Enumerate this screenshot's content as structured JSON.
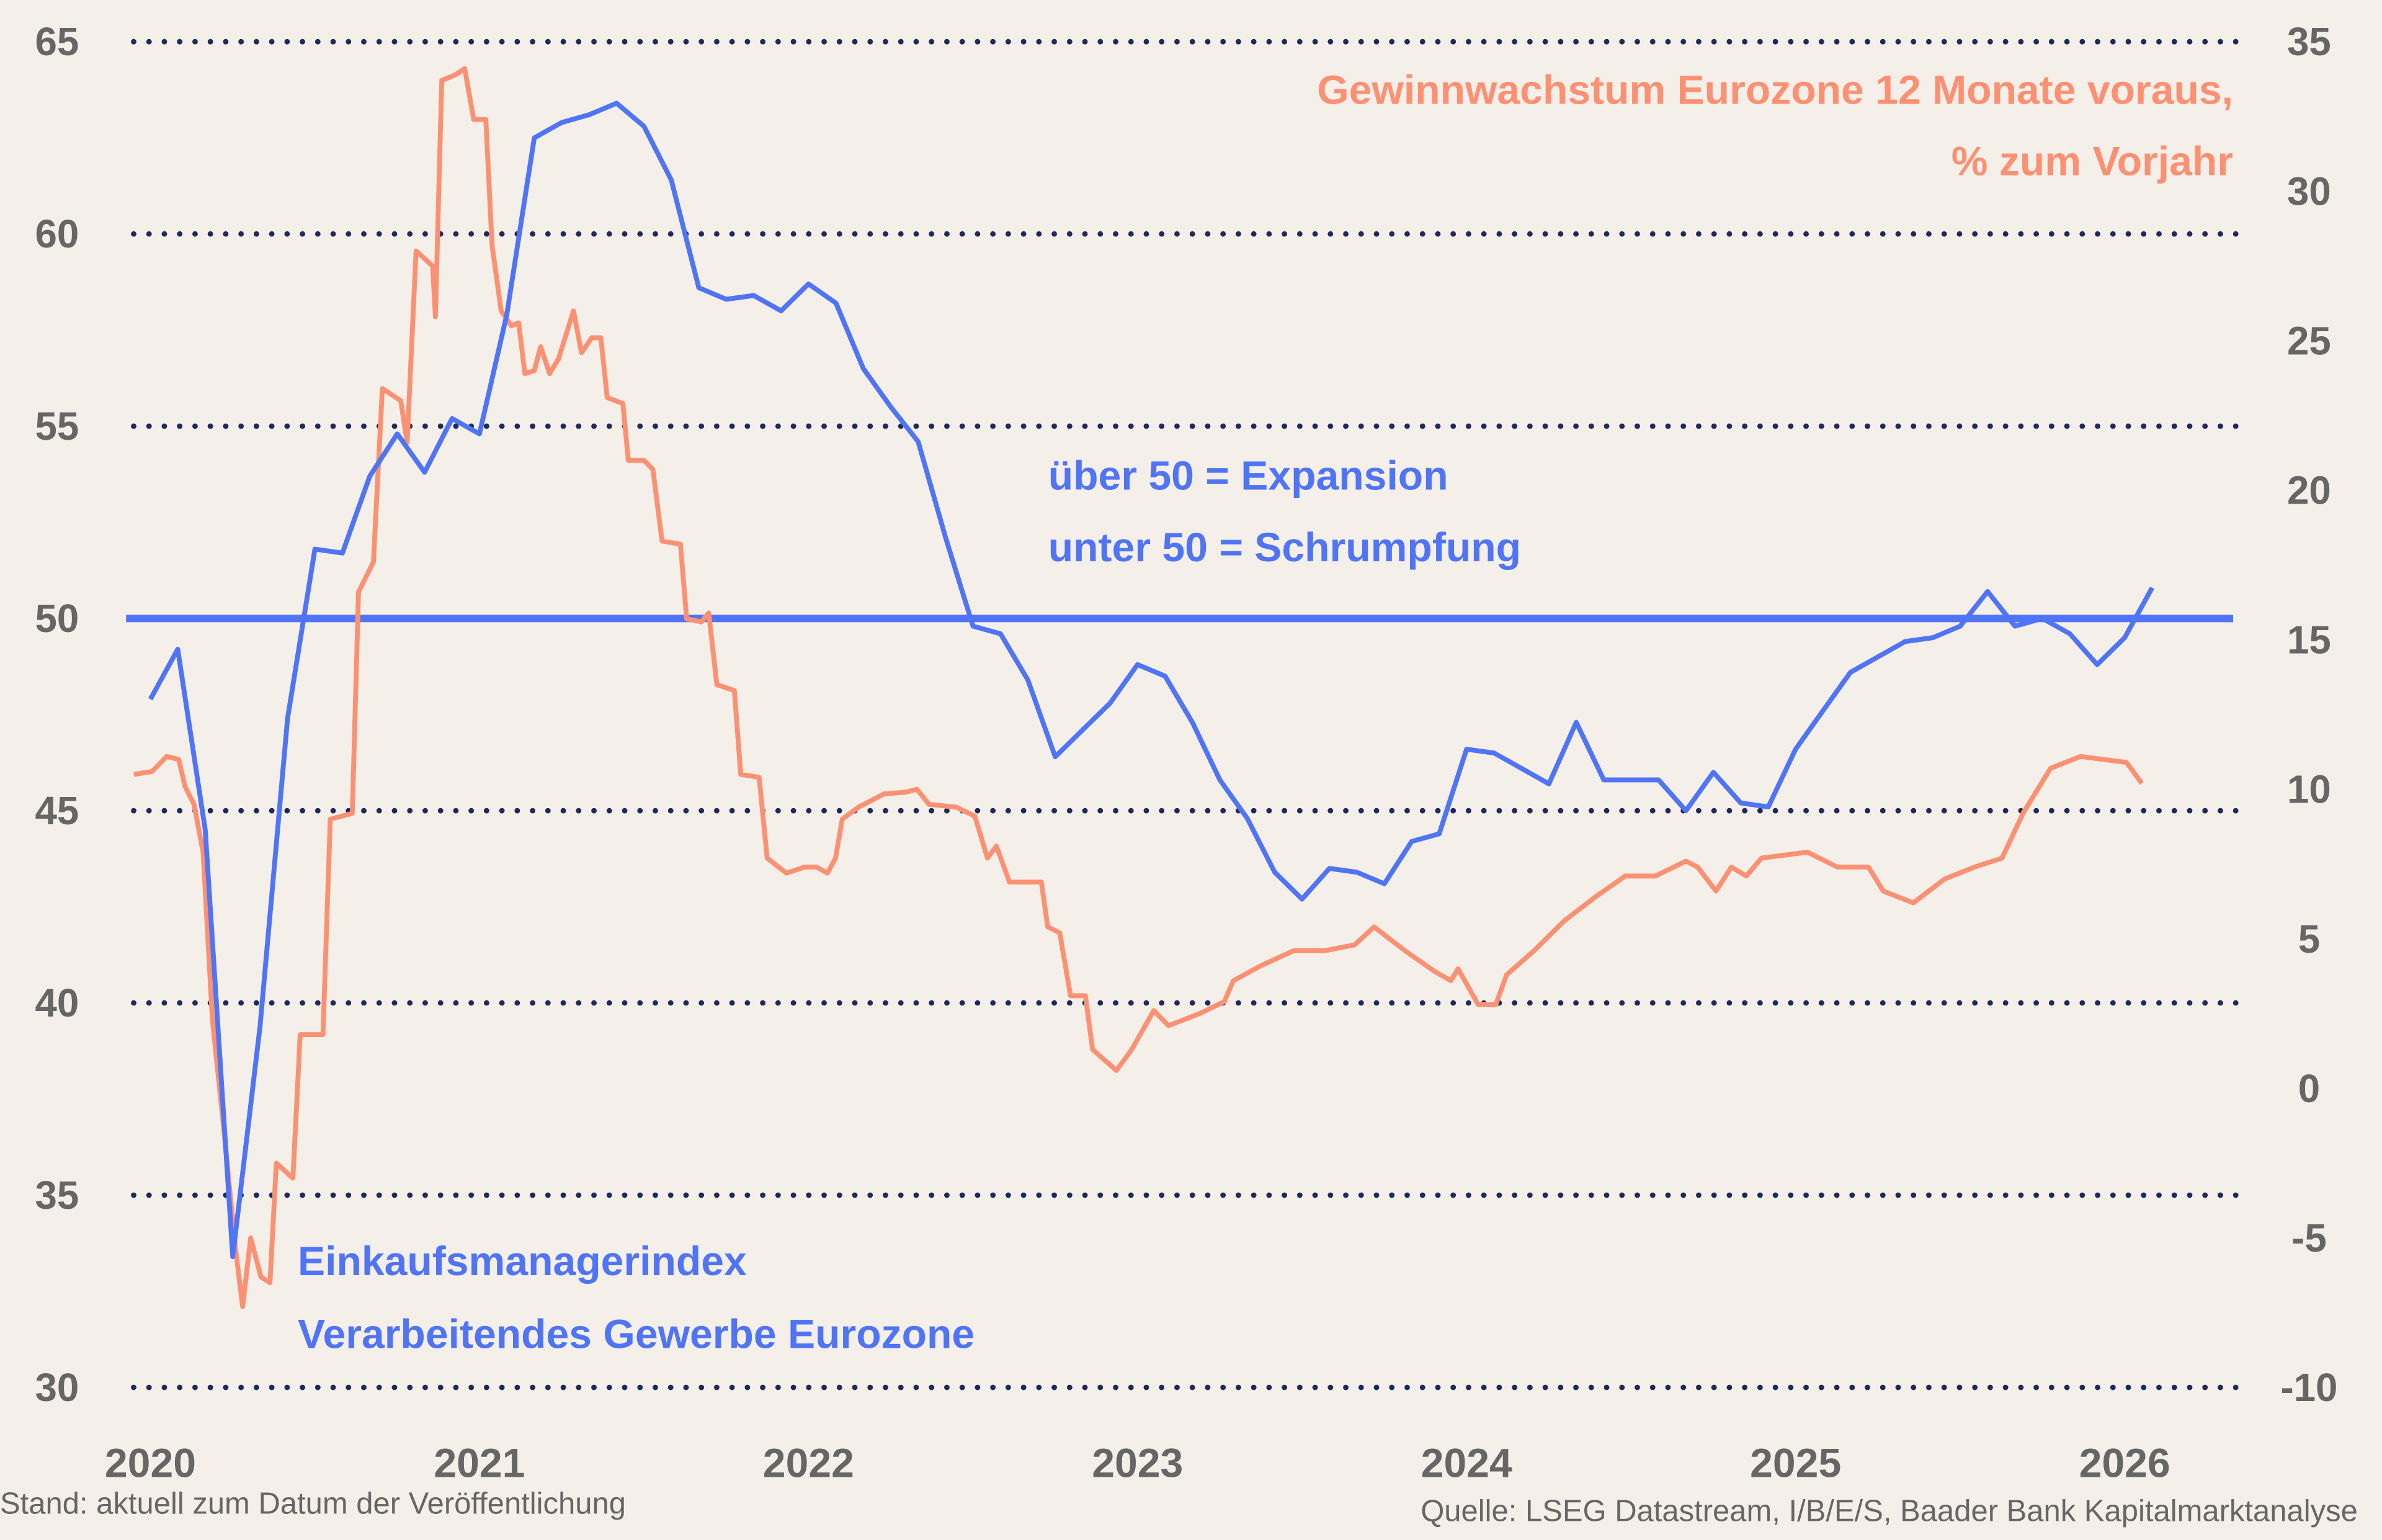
{
  "colors": {
    "background": "#f5efea",
    "pmi": "#4f74f5",
    "earnings": "#fb9172",
    "grid": "#1b2a5a",
    "text": "#666666"
  },
  "chart_data": {
    "type": "line",
    "grid": true,
    "x_ticks": [
      "2020",
      "2021",
      "2022",
      "2023",
      "2024",
      "2025",
      "2026"
    ],
    "y_left": {
      "ticks": [
        65,
        60,
        55,
        50,
        45,
        40,
        35,
        30
      ],
      "range": [
        30,
        65
      ]
    },
    "y_right": {
      "ticks": [
        35,
        30,
        25,
        20,
        15,
        10,
        5,
        0,
        -5,
        -10
      ],
      "range": [
        -10,
        35
      ]
    },
    "reference_line": {
      "axis": "left",
      "value": 50
    },
    "annotations": {
      "threshold_line1": "über 50 = Expansion",
      "threshold_line2": "unter 50 = Schrumpfung"
    },
    "series": [
      {
        "name_line1": "Einkaufsmanagerindex",
        "name_line2": "Verarbeitendes Gewerbe Eurozone",
        "axis": "left",
        "points": [
          [
            "2020-01",
            47.9
          ],
          [
            "2020-02",
            49.2
          ],
          [
            "2020-03",
            44.5
          ],
          [
            "2020-04",
            33.4
          ],
          [
            "2020-05",
            39.4
          ],
          [
            "2020-06",
            47.4
          ],
          [
            "2020-07",
            51.8
          ],
          [
            "2020-08",
            51.7
          ],
          [
            "2020-09",
            53.7
          ],
          [
            "2020-10",
            54.8
          ],
          [
            "2020-11",
            53.8
          ],
          [
            "2020-12",
            55.2
          ],
          [
            "2021-01",
            54.8
          ],
          [
            "2021-02",
            57.9
          ],
          [
            "2021-03",
            62.5
          ],
          [
            "2021-04",
            62.9
          ],
          [
            "2021-05",
            63.1
          ],
          [
            "2021-06",
            63.4
          ],
          [
            "2021-07",
            62.8
          ],
          [
            "2021-08",
            61.4
          ],
          [
            "2021-09",
            58.6
          ],
          [
            "2021-10",
            58.3
          ],
          [
            "2021-11",
            58.4
          ],
          [
            "2021-12",
            58.0
          ],
          [
            "2022-01",
            58.7
          ],
          [
            "2022-02",
            58.2
          ],
          [
            "2022-03",
            56.5
          ],
          [
            "2022-04",
            55.5
          ],
          [
            "2022-05",
            54.6
          ],
          [
            "2022-06",
            52.1
          ],
          [
            "2022-07",
            49.8
          ],
          [
            "2022-08",
            49.6
          ],
          [
            "2022-09",
            48.4
          ],
          [
            "2022-10",
            46.4
          ],
          [
            "2022-11",
            47.1
          ],
          [
            "2022-12",
            47.8
          ],
          [
            "2023-01",
            48.8
          ],
          [
            "2023-02",
            48.5
          ],
          [
            "2023-03",
            47.3
          ],
          [
            "2023-04",
            45.8
          ],
          [
            "2023-05",
            44.8
          ],
          [
            "2023-06",
            43.4
          ],
          [
            "2023-07",
            42.7
          ],
          [
            "2023-08",
            43.5
          ],
          [
            "2023-09",
            43.4
          ],
          [
            "2023-10",
            43.1
          ],
          [
            "2023-11",
            44.2
          ],
          [
            "2023-12",
            44.4
          ],
          [
            "2024-01",
            46.6
          ],
          [
            "2024-02",
            46.5
          ],
          [
            "2024-03",
            46.1
          ],
          [
            "2024-04",
            45.7
          ],
          [
            "2024-05",
            47.3
          ],
          [
            "2024-06",
            45.8
          ],
          [
            "2024-07",
            45.8
          ],
          [
            "2024-08",
            45.8
          ],
          [
            "2024-09",
            45.0
          ],
          [
            "2024-10",
            46.0
          ],
          [
            "2024-11",
            45.2
          ],
          [
            "2024-12",
            45.1
          ],
          [
            "2025-01",
            46.6
          ],
          [
            "2025-02",
            47.6
          ],
          [
            "2025-03",
            48.6
          ],
          [
            "2025-04",
            49.0
          ],
          [
            "2025-05",
            49.4
          ],
          [
            "2025-06",
            49.5
          ],
          [
            "2025-07",
            49.8
          ],
          [
            "2025-08",
            50.7
          ],
          [
            "2025-09",
            49.8
          ],
          [
            "2025-10",
            50.0
          ],
          [
            "2025-11",
            49.6
          ],
          [
            "2025-12",
            48.8
          ],
          [
            "2026-01",
            49.5
          ],
          [
            "2026-02",
            50.8
          ]
        ]
      },
      {
        "name_line1": "Gewinnwachstum Eurozone 12 Monate voraus,",
        "name_line2": "% zum Vorjahr",
        "axis": "right",
        "points": [
          [
            "2019-12-13",
            10.5
          ],
          [
            "2020-01-03",
            10.6
          ],
          [
            "2020-01-19",
            11.1
          ],
          [
            "2020-02-02",
            11.0
          ],
          [
            "2020-02-09",
            10.1
          ],
          [
            "2020-02-19",
            9.5
          ],
          [
            "2020-02-29",
            7.9
          ],
          [
            "2020-03-09",
            2.3
          ],
          [
            "2020-03-21",
            -1.2
          ],
          [
            "2020-04-04",
            -5.3
          ],
          [
            "2020-04-12",
            -7.3
          ],
          [
            "2020-04-21",
            -5.0
          ],
          [
            "2020-05-02",
            -6.3
          ],
          [
            "2020-05-12",
            -6.5
          ],
          [
            "2020-05-19",
            -2.5
          ],
          [
            "2020-06-07",
            -3.0
          ],
          [
            "2020-06-15",
            1.8
          ],
          [
            "2020-07-10",
            1.8
          ],
          [
            "2020-07-18",
            9.0
          ],
          [
            "2020-08-12",
            9.2
          ],
          [
            "2020-08-19",
            16.6
          ],
          [
            "2020-09-05",
            17.6
          ],
          [
            "2020-09-15",
            23.4
          ],
          [
            "2020-10-05",
            23.0
          ],
          [
            "2020-10-12",
            21.6
          ],
          [
            "2020-10-22",
            28.0
          ],
          [
            "2020-11-10",
            27.5
          ],
          [
            "2020-11-13",
            25.8
          ],
          [
            "2020-11-20",
            33.7
          ],
          [
            "2020-12-05",
            33.9
          ],
          [
            "2020-12-15",
            34.1
          ],
          [
            "2020-12-25",
            32.4
          ],
          [
            "2021-01-08",
            32.4
          ],
          [
            "2021-01-15",
            28.2
          ],
          [
            "2021-01-25",
            26.0
          ],
          [
            "2021-02-06",
            25.5
          ],
          [
            "2021-02-14",
            25.6
          ],
          [
            "2021-02-21",
            23.9
          ],
          [
            "2021-03-01",
            24.0
          ],
          [
            "2021-03-08",
            24.8
          ],
          [
            "2021-03-18",
            23.9
          ],
          [
            "2021-03-28",
            24.4
          ],
          [
            "2021-04-14",
            26.0
          ],
          [
            "2021-04-23",
            24.6
          ],
          [
            "2021-05-04",
            25.1
          ],
          [
            "2021-05-14",
            25.1
          ],
          [
            "2021-05-21",
            23.1
          ],
          [
            "2021-06-08",
            22.9
          ],
          [
            "2021-06-14",
            21.0
          ],
          [
            "2021-07-01",
            21.0
          ],
          [
            "2021-07-11",
            20.7
          ],
          [
            "2021-07-21",
            18.3
          ],
          [
            "2021-08-11",
            18.2
          ],
          [
            "2021-08-18",
            15.7
          ],
          [
            "2021-09-04",
            15.6
          ],
          [
            "2021-09-12",
            15.9
          ],
          [
            "2021-09-21",
            13.5
          ],
          [
            "2021-10-10",
            13.3
          ],
          [
            "2021-10-17",
            10.5
          ],
          [
            "2021-11-07",
            10.4
          ],
          [
            "2021-11-16",
            7.7
          ],
          [
            "2021-12-07",
            7.2
          ],
          [
            "2021-12-27",
            7.4
          ],
          [
            "2022-01-10",
            7.4
          ],
          [
            "2022-01-22",
            7.2
          ],
          [
            "2022-01-31",
            7.7
          ],
          [
            "2022-02-08",
            9.0
          ],
          [
            "2022-02-26",
            9.4
          ],
          [
            "2022-03-24",
            9.85
          ],
          [
            "2022-04-17",
            9.9
          ],
          [
            "2022-04-30",
            10.0
          ],
          [
            "2022-05-13",
            9.5
          ],
          [
            "2022-06-13",
            9.4
          ],
          [
            "2022-07-03",
            9.1
          ],
          [
            "2022-07-17",
            7.7
          ],
          [
            "2022-07-27",
            8.1
          ],
          [
            "2022-08-11",
            6.9
          ],
          [
            "2022-09-16",
            6.9
          ],
          [
            "2022-09-23",
            5.4
          ],
          [
            "2022-10-06",
            5.2
          ],
          [
            "2022-10-18",
            3.1
          ],
          [
            "2022-11-04",
            3.1
          ],
          [
            "2022-11-12",
            1.3
          ],
          [
            "2022-12-08",
            0.6
          ],
          [
            "2022-12-25",
            1.3
          ],
          [
            "2023-01-19",
            2.6
          ],
          [
            "2023-02-05",
            2.1
          ],
          [
            "2023-03-09",
            2.5
          ],
          [
            "2023-04-06",
            2.9
          ],
          [
            "2023-04-16",
            3.6
          ],
          [
            "2023-05-16",
            4.1
          ],
          [
            "2023-06-22",
            4.6
          ],
          [
            "2023-07-26",
            4.6
          ],
          [
            "2023-08-29",
            4.8
          ],
          [
            "2023-09-20",
            5.4
          ],
          [
            "2023-10-24",
            4.6
          ],
          [
            "2023-11-27",
            3.9
          ],
          [
            "2023-12-14",
            3.6
          ],
          [
            "2023-12-22",
            4.0
          ],
          [
            "2024-01-14",
            2.8
          ],
          [
            "2024-02-03",
            2.8
          ],
          [
            "2024-02-15",
            3.8
          ],
          [
            "2024-03-15",
            4.6
          ],
          [
            "2024-04-18",
            5.6
          ],
          [
            "2024-05-22",
            6.4
          ],
          [
            "2024-06-25",
            7.1
          ],
          [
            "2024-07-28",
            7.1
          ],
          [
            "2024-09-01",
            7.6
          ],
          [
            "2024-09-14",
            7.4
          ],
          [
            "2024-10-04",
            6.6
          ],
          [
            "2024-10-21",
            7.4
          ],
          [
            "2024-11-07",
            7.1
          ],
          [
            "2024-11-24",
            7.7
          ],
          [
            "2025-01-14",
            7.9
          ],
          [
            "2025-02-17",
            7.4
          ],
          [
            "2025-03-21",
            7.4
          ],
          [
            "2025-04-07",
            6.6
          ],
          [
            "2025-05-10",
            6.2
          ],
          [
            "2025-06-14",
            7.0
          ],
          [
            "2025-07-17",
            7.4
          ],
          [
            "2025-08-17",
            7.7
          ],
          [
            "2025-09-10",
            9.2
          ],
          [
            "2025-10-10",
            10.7
          ],
          [
            "2025-11-13",
            11.1
          ],
          [
            "2026-01-03",
            10.9
          ],
          [
            "2026-01-20",
            10.2
          ]
        ]
      }
    ]
  },
  "footer": {
    "left": "Stand: aktuell zum Datum der Veröffentlichung",
    "right": "Quelle: LSEG Datastream, I/B/E/S, Baader Bank Kapitalmarktanalyse"
  }
}
